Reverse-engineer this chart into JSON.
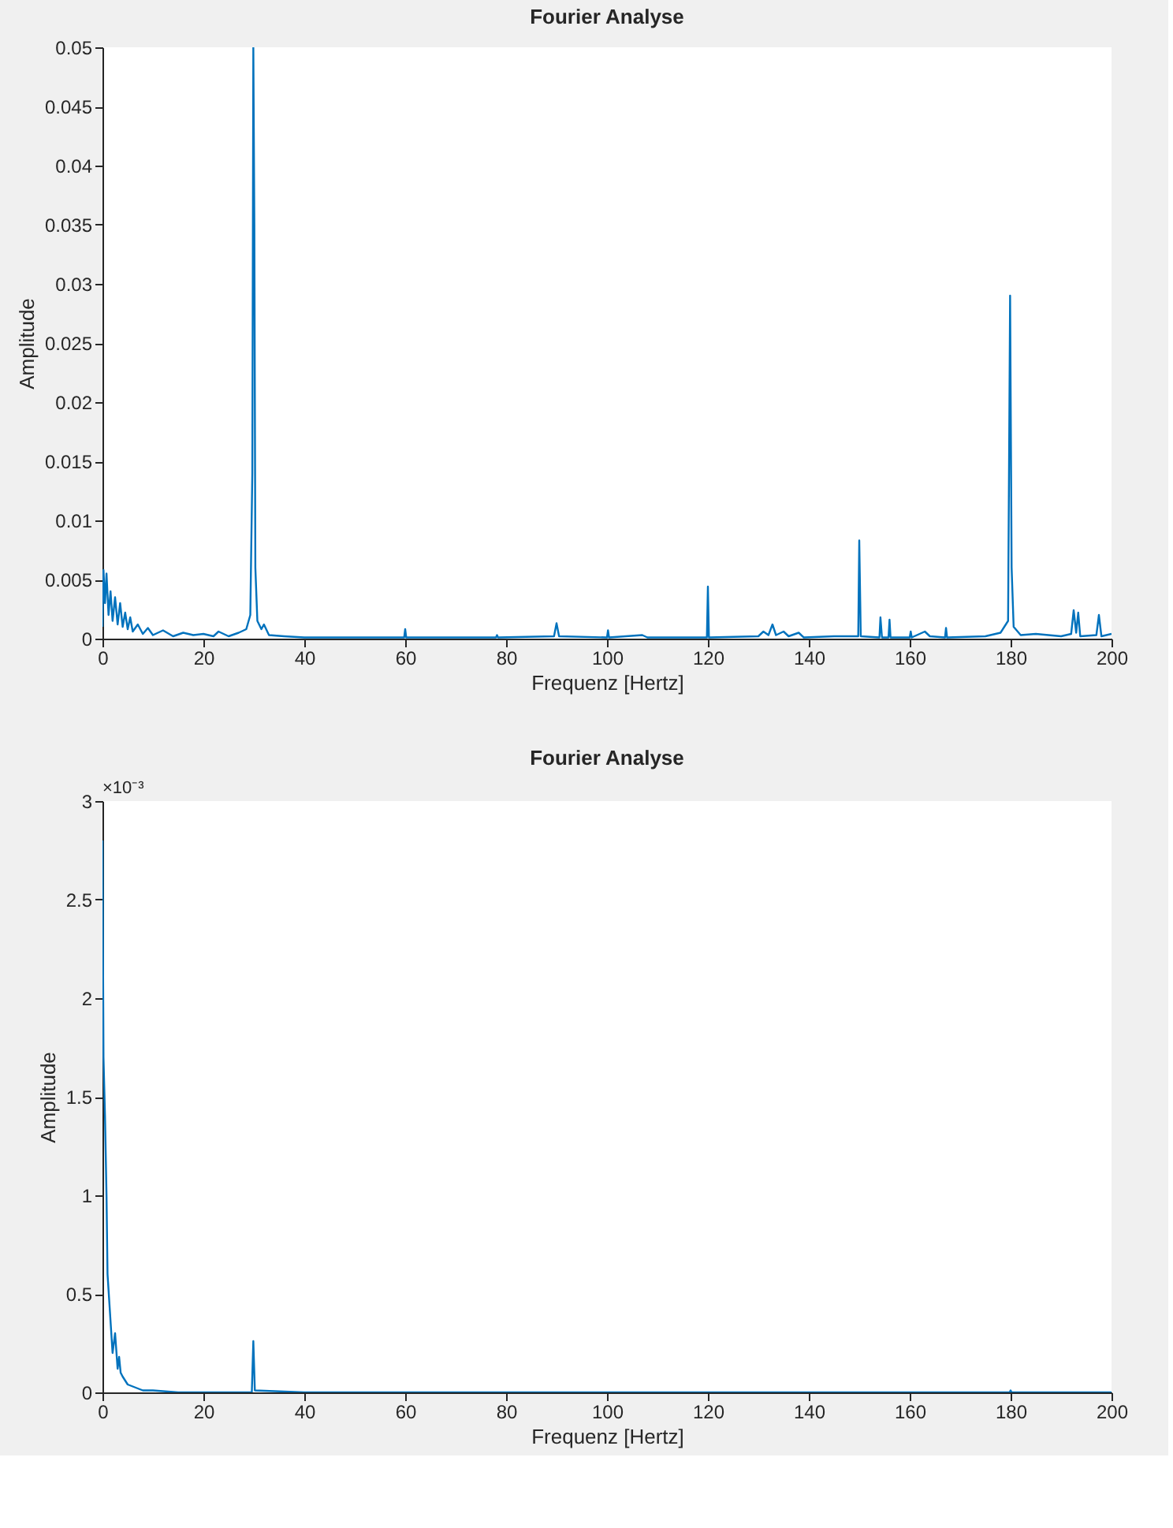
{
  "chart_data": [
    {
      "type": "line",
      "title": "Fourier Analyse",
      "xlabel": "Frequenz [Hertz]",
      "ylabel": "Amplitude",
      "xlim": [
        0,
        200
      ],
      "xticks": [
        0,
        20,
        40,
        60,
        80,
        100,
        120,
        140,
        160,
        180,
        200
      ],
      "ylim": [
        0,
        0.05
      ],
      "yticks": [
        0,
        0.005,
        0.01,
        0.015,
        0.02,
        0.025,
        0.03,
        0.035,
        0.04,
        0.045,
        0.05
      ],
      "grid": false,
      "line_style": "solid",
      "series": [
        {
          "color": "#0072bd",
          "x": [
            0,
            0.2,
            0.5,
            0.8,
            1.2,
            1.6,
            2,
            2.5,
            3,
            3.5,
            4,
            4.5,
            5,
            5.5,
            6,
            7,
            8,
            9,
            10,
            12,
            14,
            16,
            18,
            20,
            22,
            23,
            25,
            27,
            28.5,
            29.3,
            29.7,
            29.9,
            30.1,
            30.3,
            30.7,
            31.5,
            32,
            33,
            36,
            40,
            50,
            59.8,
            60,
            60.2,
            78,
            78.2,
            78.4,
            89.5,
            90,
            90.5,
            100,
            100.2,
            100.4,
            107,
            108,
            119.8,
            120,
            120.2,
            130,
            131,
            132,
            132.8,
            133.5,
            135,
            136,
            138,
            139,
            145,
            149.8,
            150,
            150.3,
            154,
            154.2,
            154.5,
            155.8,
            156,
            156.2,
            160,
            160.2,
            160.4,
            163,
            164,
            167,
            167.2,
            167.4,
            175,
            178,
            179.5,
            179.9,
            180.2,
            180.6,
            182,
            185,
            190,
            192,
            192.5,
            193,
            193.4,
            193.8,
            197,
            197.5,
            198,
            200
          ],
          "values": [
            0.001,
            0.0058,
            0.003,
            0.0055,
            0.002,
            0.004,
            0.0015,
            0.0035,
            0.0012,
            0.003,
            0.001,
            0.0022,
            0.0008,
            0.0018,
            0.0006,
            0.0012,
            0.0004,
            0.0009,
            0.0003,
            0.0007,
            0.0002,
            0.0005,
            0.0003,
            0.0004,
            0.0002,
            0.0006,
            0.0002,
            0.0005,
            0.0008,
            0.002,
            0.014,
            0.05,
            0.035,
            0.006,
            0.0015,
            0.0008,
            0.0012,
            0.0003,
            0.0002,
            0.0001,
            0.0001,
            0.0001,
            0.0008,
            0.0001,
            0.0001,
            0.0003,
            0.0001,
            0.0002,
            0.0013,
            0.0002,
            0.0001,
            0.0007,
            0.0001,
            0.0003,
            0.0001,
            0.0001,
            0.0044,
            0.0001,
            0.0002,
            0.0006,
            0.0003,
            0.0012,
            0.0003,
            0.0006,
            0.0002,
            0.0005,
            0.0001,
            0.0002,
            0.0002,
            0.0083,
            0.0002,
            0.0001,
            0.0018,
            0.0001,
            0.0001,
            0.0016,
            0.0001,
            0.0001,
            0.0006,
            0.0001,
            0.0006,
            0.0002,
            0.0001,
            0.0009,
            0.0001,
            0.0002,
            0.0005,
            0.0015,
            0.029,
            0.006,
            0.001,
            0.0003,
            0.0004,
            0.0002,
            0.0004,
            0.0024,
            0.0005,
            0.0022,
            0.0002,
            0.0003,
            0.002,
            0.0002,
            0.0004
          ]
        }
      ]
    },
    {
      "type": "line",
      "title": "Fourier Analyse",
      "xlabel": "Frequenz [Hertz]",
      "ylabel": "Amplitude",
      "annotations": [
        "×10⁻³"
      ],
      "xlim": [
        0,
        200
      ],
      "xticks": [
        0,
        20,
        40,
        60,
        80,
        100,
        120,
        140,
        160,
        180,
        200
      ],
      "ylim": [
        0,
        3
      ],
      "yticks": [
        0,
        0.5,
        1,
        1.5,
        2,
        2.5,
        3
      ],
      "grid": false,
      "line_style": "solid",
      "series": [
        {
          "color": "#0072bd",
          "x": [
            0,
            0.2,
            0.5,
            0.8,
            1,
            1.5,
            2,
            2.5,
            3,
            3.3,
            3.6,
            4,
            5,
            6,
            8,
            10,
            15,
            29.6,
            29.9,
            30.2,
            40,
            100,
            179.8,
            180,
            180.2,
            200
          ],
          "values": [
            2.8,
            1.7,
            1.4,
            1.0,
            0.6,
            0.4,
            0.2,
            0.3,
            0.12,
            0.18,
            0.1,
            0.08,
            0.04,
            0.03,
            0.01,
            0.01,
            0,
            0,
            0.26,
            0.01,
            0,
            0,
            0,
            0.01,
            0,
            0
          ]
        }
      ]
    }
  ]
}
